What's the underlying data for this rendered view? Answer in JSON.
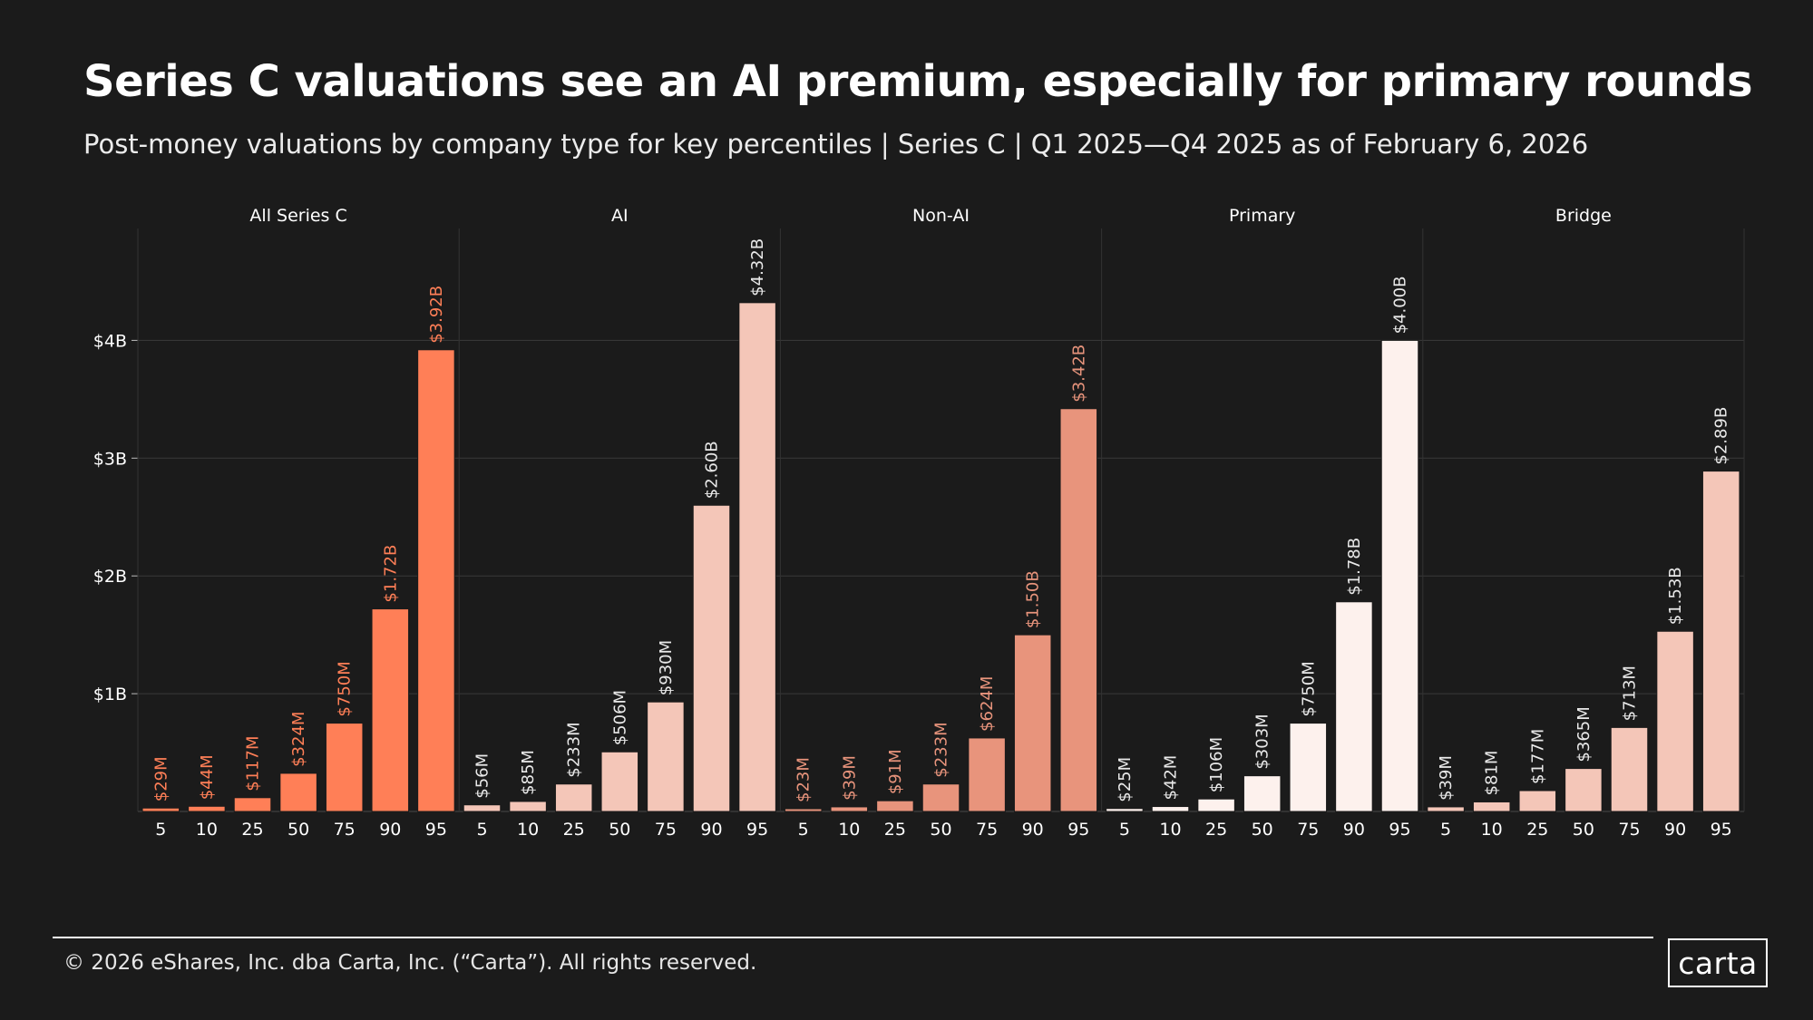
{
  "header": {
    "title": "Series C valuations see an AI premium, especially for primary rounds",
    "subtitle": "Post-money valuations by company type for key percentiles  |  Series C  |  Q1 2025—Q4 2025 as of February 6, 2026"
  },
  "footer": {
    "copyright": "© 2026 eShares, Inc. dba Carta, Inc. (“Carta”). All rights reserved.",
    "logo_text": "carta"
  },
  "colors": {
    "background": "#1b1b1b",
    "grid": "#3a3a3a",
    "axis_text": "#ffffff"
  },
  "chart_data": {
    "type": "bar",
    "title": "Series C valuations see an AI premium, especially for primary rounds",
    "xlabel": "",
    "ylabel": "",
    "ylim": [
      0,
      4.95
    ],
    "y_unit": "billions USD",
    "y_ticks": [
      {
        "value": 1,
        "label": "$1B"
      },
      {
        "value": 2,
        "label": "$2B"
      },
      {
        "value": 3,
        "label": "$3B"
      },
      {
        "value": 4,
        "label": "$4B"
      }
    ],
    "categories": [
      "5",
      "10",
      "25",
      "50",
      "75",
      "90",
      "95"
    ],
    "panels": [
      {
        "name": "All Series C",
        "color": "#ff7f57",
        "label_color": "#ff7f57",
        "values": [
          0.029,
          0.044,
          0.117,
          0.324,
          0.75,
          1.72,
          3.92
        ],
        "labels": [
          "$29M",
          "$44M",
          "$117M",
          "$324M",
          "$750M",
          "$1.72B",
          "$3.92B"
        ]
      },
      {
        "name": "AI",
        "color": "#f4c6b8",
        "label_color": "#e9e9e9",
        "values": [
          0.056,
          0.085,
          0.233,
          0.506,
          0.93,
          2.6,
          4.32
        ],
        "labels": [
          "$56M",
          "$85M",
          "$233M",
          "$506M",
          "$930M",
          "$2.60B",
          "$4.32B"
        ]
      },
      {
        "name": "Non-AI",
        "color": "#e8947c",
        "label_color": "#e8947c",
        "values": [
          0.023,
          0.039,
          0.091,
          0.233,
          0.624,
          1.5,
          3.42
        ],
        "labels": [
          "$23M",
          "$39M",
          "$91M",
          "$233M",
          "$624M",
          "$1.50B",
          "$3.42B"
        ]
      },
      {
        "name": "Primary",
        "color": "#fdf1ed",
        "label_color": "#e9e9e9",
        "values": [
          0.025,
          0.042,
          0.106,
          0.303,
          0.75,
          1.78,
          4.0
        ],
        "labels": [
          "$25M",
          "$42M",
          "$106M",
          "$303M",
          "$750M",
          "$1.78B",
          "$4.00B"
        ]
      },
      {
        "name": "Bridge",
        "color": "#f4c6b8",
        "label_color": "#e9e9e9",
        "values": [
          0.039,
          0.081,
          0.177,
          0.365,
          0.713,
          1.53,
          2.89
        ],
        "labels": [
          "$39M",
          "$81M",
          "$177M",
          "$365M",
          "$713M",
          "$1.53B",
          "$2.89B"
        ]
      }
    ]
  }
}
